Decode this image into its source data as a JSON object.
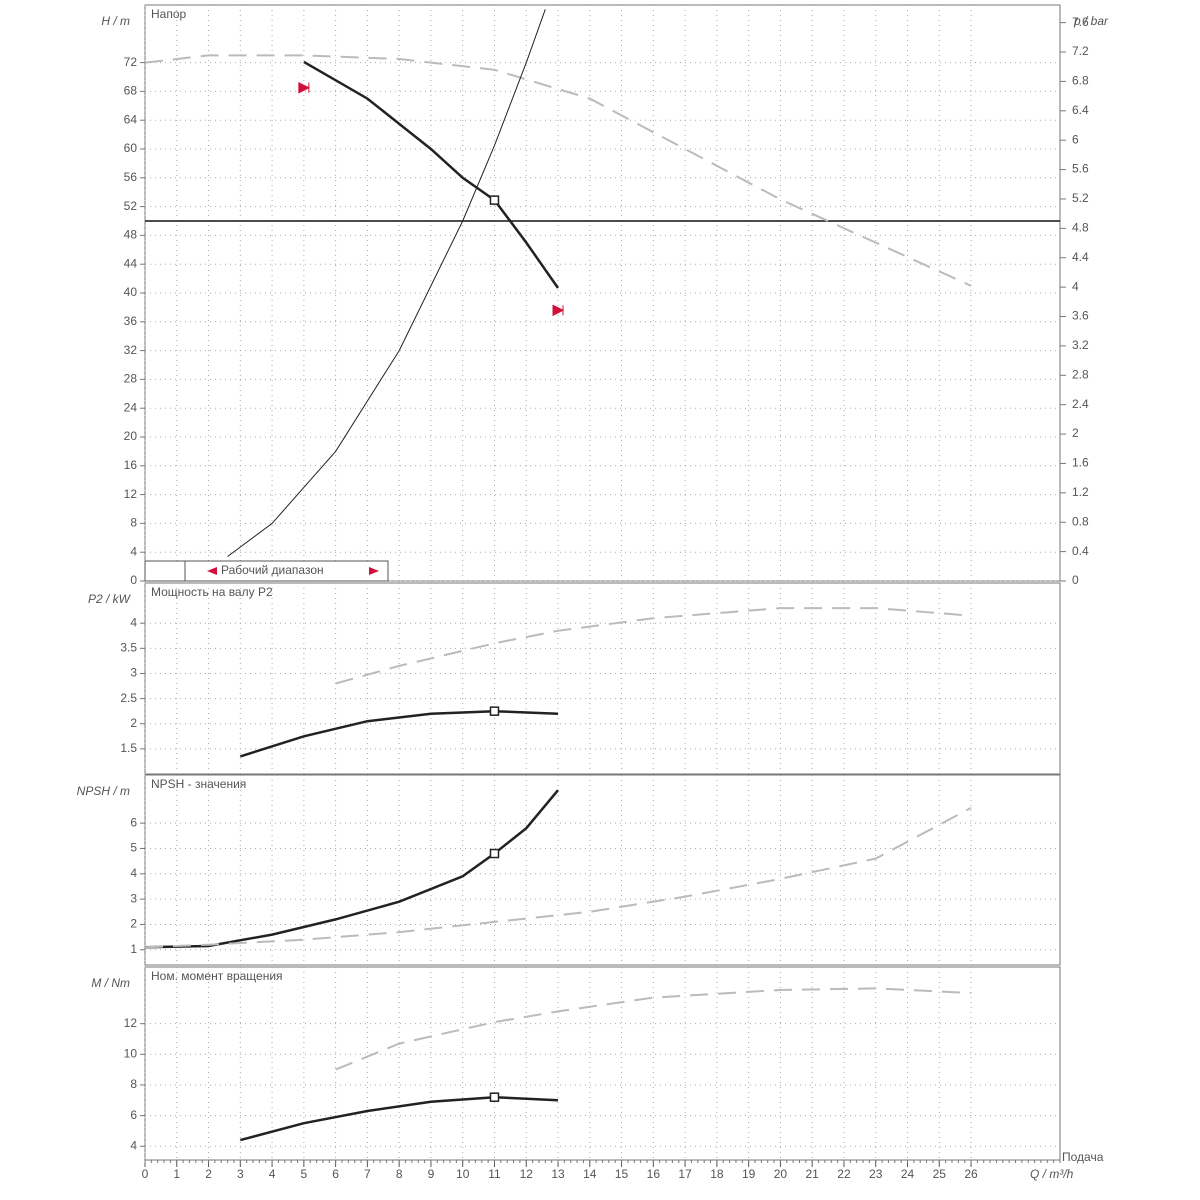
{
  "chart_data": [
    {
      "type": "line",
      "title": "Напор",
      "ylabel": "H / m",
      "y2label": "p / bar",
      "xlim": [
        0,
        28.8
      ],
      "ylim": [
        0,
        80
      ],
      "yticks": [
        0,
        4,
        8,
        12,
        16,
        20,
        24,
        28,
        32,
        36,
        40,
        44,
        48,
        52,
        56,
        60,
        64,
        68,
        72
      ],
      "y2lim": [
        0,
        7.84
      ],
      "y2ticks": [
        0,
        0.4,
        0.8,
        1.2,
        1.6,
        2,
        2.4,
        2.8,
        3.2,
        3.6,
        4,
        4.4,
        4.8,
        5.2,
        5.6,
        6,
        6.4,
        6.8,
        7.2,
        7.6
      ],
      "series": [
        {
          "color": "#222",
          "dash": false,
          "width": 2.5,
          "x": [
            5,
            7,
            9,
            10,
            11,
            12,
            13
          ],
          "values": [
            72.1,
            67,
            60,
            56,
            52.9,
            47,
            40.7
          ]
        },
        {
          "color": "#bbb",
          "dash": true,
          "width": 2,
          "x": [
            0,
            2,
            5,
            8,
            11,
            14,
            17,
            20,
            23,
            26
          ],
          "values": [
            72,
            73,
            73,
            72.5,
            71,
            67,
            60,
            53,
            47,
            41
          ]
        },
        {
          "color": "#222",
          "dash": false,
          "width": 1,
          "x": [
            2.6,
            4,
            6,
            8,
            10,
            11,
            12,
            12.6
          ],
          "values": [
            3.4,
            8,
            18,
            32,
            50,
            60.5,
            72,
            79.4
          ]
        }
      ],
      "hline": 50,
      "duty_point": {
        "x": 11,
        "y": 52.9
      },
      "range_markers": [
        {
          "x": 5,
          "y": 68.5
        },
        {
          "x": 13,
          "y": 37.6
        }
      ],
      "legend_text": "Рабочий диапазон",
      "grid": true
    },
    {
      "type": "line",
      "title": "Мощность на валу P2",
      "ylabel": "P2 / kW",
      "xlim": [
        0,
        28.8
      ],
      "ylim": [
        1,
        4.8
      ],
      "yticks": [
        1.5,
        2,
        2.5,
        3,
        3.5,
        4
      ],
      "series": [
        {
          "color": "#222",
          "dash": false,
          "width": 2.5,
          "x": [
            3,
            5,
            7,
            9,
            11,
            13
          ],
          "values": [
            1.35,
            1.75,
            2.05,
            2.2,
            2.25,
            2.2
          ]
        },
        {
          "color": "#bbb",
          "dash": true,
          "width": 2,
          "x": [
            6,
            8,
            11,
            13,
            16,
            20,
            23,
            26
          ],
          "values": [
            2.8,
            3.15,
            3.6,
            3.85,
            4.1,
            4.3,
            4.3,
            4.15
          ]
        }
      ],
      "duty_point": {
        "x": 11,
        "y": 2.25
      },
      "grid": true
    },
    {
      "type": "line",
      "title": "NPSH - значения",
      "ylabel": "NPSH / m",
      "xlim": [
        0,
        28.8
      ],
      "ylim": [
        0.4,
        7.9
      ],
      "yticks": [
        1,
        2,
        3,
        4,
        5,
        6
      ],
      "series": [
        {
          "color": "#222",
          "dash": false,
          "width": 2.5,
          "x": [
            0,
            2,
            4,
            6,
            8,
            10,
            11,
            12,
            13
          ],
          "values": [
            1.1,
            1.15,
            1.6,
            2.2,
            2.9,
            3.9,
            4.8,
            5.8,
            7.3
          ]
        },
        {
          "color": "#bbb",
          "dash": true,
          "width": 2,
          "x": [
            0,
            2,
            5,
            8,
            11,
            14,
            17,
            20,
            23,
            26
          ],
          "values": [
            1.1,
            1.2,
            1.4,
            1.7,
            2.1,
            2.5,
            3.1,
            3.8,
            4.6,
            6.6
          ]
        }
      ],
      "duty_point": {
        "x": 11,
        "y": 4.8
      },
      "grid": true
    },
    {
      "type": "line",
      "title": "Ном. момент вращения",
      "ylabel": "M / Nm",
      "xlim": [
        0,
        28.8
      ],
      "ylim": [
        3.1,
        15.7
      ],
      "yticks": [
        4,
        6,
        8,
        10,
        12
      ],
      "xticks": [
        0,
        1,
        2,
        3,
        4,
        5,
        6,
        7,
        8,
        9,
        10,
        11,
        12,
        13,
        14,
        15,
        16,
        17,
        18,
        19,
        20,
        21,
        22,
        23,
        24,
        25,
        26
      ],
      "xlabel": "Q / m³/h",
      "xlabel_title": "Подача",
      "series": [
        {
          "color": "#222",
          "dash": false,
          "width": 2.5,
          "x": [
            3,
            5,
            7,
            9,
            11,
            13
          ],
          "values": [
            4.4,
            5.5,
            6.3,
            6.9,
            7.2,
            7.0
          ]
        },
        {
          "color": "#bbb",
          "dash": true,
          "width": 2,
          "x": [
            6,
            8,
            11,
            13,
            16,
            20,
            23,
            26
          ],
          "values": [
            9,
            10.7,
            12.1,
            12.8,
            13.7,
            14.2,
            14.3,
            14.0
          ]
        }
      ],
      "duty_point": {
        "x": 11,
        "y": 7.2
      },
      "grid": true
    }
  ]
}
